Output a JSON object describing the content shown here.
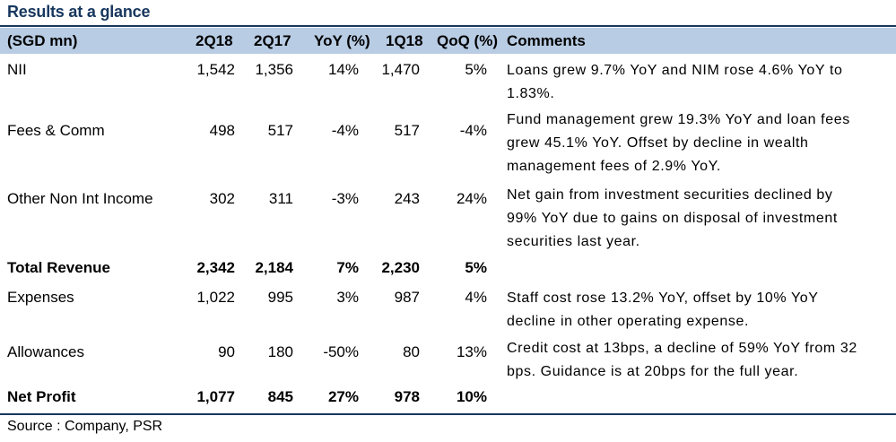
{
  "title": "Results at a glance",
  "columns": [
    "(SGD mn)",
    "2Q18",
    "2Q17",
    "YoY (%)",
    "1Q18",
    "QoQ (%)",
    "Comments"
  ],
  "rows": [
    {
      "label": "NII",
      "q2_18": "1,542",
      "q2_17": "1,356",
      "yoy": "14%",
      "q1_18": "1,470",
      "qoq": "5%",
      "comment": [
        "Loans grew 9.7% YoY and NIM rose 4.6% YoY to",
        "1.83%."
      ]
    },
    {
      "label": "Fees & Comm",
      "q2_18": "498",
      "q2_17": "517",
      "yoy": "-4%",
      "q1_18": "517",
      "qoq": "-4%",
      "comment": [
        "Fund management grew 19.3% YoY and loan fees",
        "grew 45.1% YoY. Offset by decline in wealth",
        "management fees of 2.9% YoY."
      ]
    },
    {
      "label": "Other Non Int Income",
      "q2_18": "302",
      "q2_17": "311",
      "yoy": "-3%",
      "q1_18": "243",
      "qoq": "24%",
      "comment": [
        "Net gain from investment securities declined by",
        "99% YoY due to gains on disposal of investment",
        "securities last year."
      ]
    },
    {
      "label": "Total Revenue",
      "q2_18": "2,342",
      "q2_17": "2,184",
      "yoy": "7%",
      "q1_18": "2,230",
      "qoq": "5%",
      "comment": []
    },
    {
      "label": "Expenses",
      "q2_18": "1,022",
      "q2_17": "995",
      "yoy": "3%",
      "q1_18": "987",
      "qoq": "4%",
      "comment": [
        "Staff cost rose 13.2% YoY, offset by  10% YoY",
        "decline in other operating expense."
      ]
    },
    {
      "label": "Allowances",
      "q2_18": "90",
      "q2_17": "180",
      "yoy": "-50%",
      "q1_18": "80",
      "qoq": "13%",
      "comment": [
        "Credit cost at 13bps, a decline of 59% YoY from 32",
        "bps. Guidance is at 20bps for the full year."
      ]
    },
    {
      "label": "Net Profit",
      "q2_18": "1,077",
      "q2_17": "845",
      "yoy": "27%",
      "q1_18": "978",
      "qoq": "10%",
      "comment": []
    }
  ],
  "source": "Source : Company, PSR",
  "colors": {
    "header_bg": "#b8cce4",
    "title": "#17375e",
    "rule": "#17375e"
  }
}
